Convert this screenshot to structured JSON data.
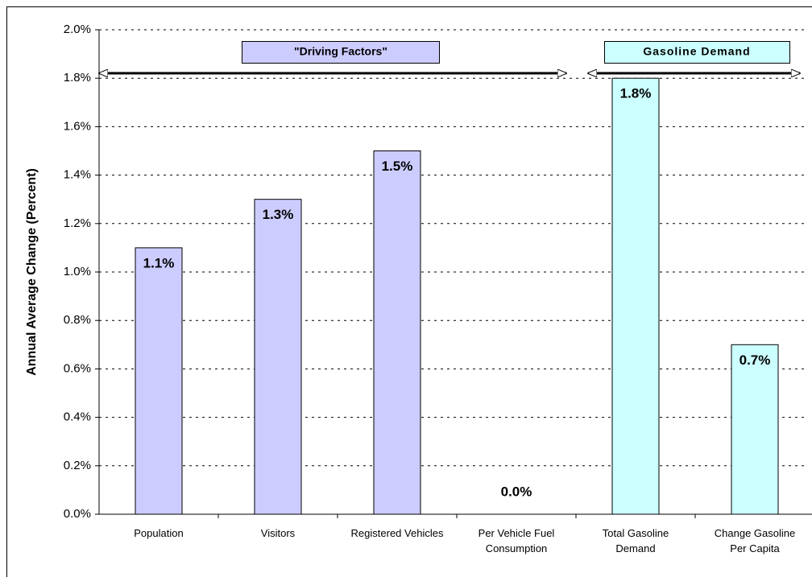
{
  "chart_data": {
    "type": "bar",
    "y_label": "Annual Average Change (Percent)",
    "categories": [
      "Population",
      "Visitors",
      "Registered Vehicles",
      "Per Vehicle Fuel Consumption",
      "Total Gasoline Demand",
      "Change Gasoline Per Capita"
    ],
    "values": [
      1.1,
      1.3,
      1.5,
      0.0,
      1.8,
      0.7
    ],
    "value_labels": [
      "1.1%",
      "1.3%",
      "1.5%",
      "0.0%",
      "1.8%",
      "0.7%"
    ],
    "colors": [
      "#ccccff",
      "#ccccff",
      "#ccccff",
      "#ccccff",
      "#ccffff",
      "#ccffff"
    ],
    "ylim": [
      0,
      2.0
    ],
    "yticks": [
      {
        "value": 0,
        "label": "0.0%"
      },
      {
        "value": 0.2,
        "label": "0.2%"
      },
      {
        "value": 0.4,
        "label": "0.4%"
      },
      {
        "value": 0.6,
        "label": "0.6%"
      },
      {
        "value": 0.8,
        "label": "0.8%"
      },
      {
        "value": 1.0,
        "label": "1.0%"
      },
      {
        "value": 1.2,
        "label": "1.2%"
      },
      {
        "value": 1.4,
        "label": "1.4%"
      },
      {
        "value": 1.6,
        "label": "1.6%"
      },
      {
        "value": 1.8,
        "label": "1.8%"
      },
      {
        "value": 2.0,
        "label": "2.0%"
      }
    ],
    "grid": true,
    "annotations": [
      "\"Driving Factors\"",
      "Gasoline Demand"
    ]
  }
}
